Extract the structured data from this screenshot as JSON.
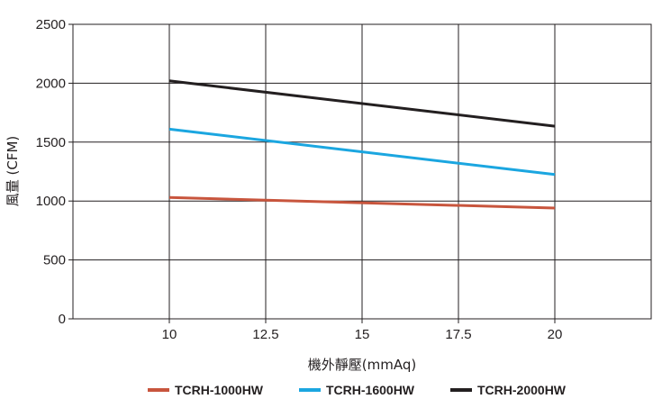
{
  "chart_data": {
    "type": "line",
    "title": "",
    "xlabel": "機外靜壓(mmAq)",
    "ylabel": "風量 (CFM)",
    "xlim": [
      7.5,
      22.5
    ],
    "ylim": [
      0,
      2500
    ],
    "x_ticks": [
      10,
      12.5,
      15,
      17.5,
      20
    ],
    "x_tick_labels": [
      "10",
      "12.5",
      "15",
      "17.5",
      "20"
    ],
    "y_ticks": [
      0,
      500,
      1000,
      1500,
      2000,
      2500
    ],
    "y_tick_labels": [
      "0",
      "500",
      "1000",
      "1500",
      "2000",
      "2500"
    ],
    "grid": true,
    "legend_position": "bottom",
    "series": [
      {
        "name": "TCRH-1000HW",
        "color": "#c8553d",
        "x": [
          10,
          20
        ],
        "y": [
          1030,
          940
        ]
      },
      {
        "name": "TCRH-1600HW",
        "color": "#1ba6e0",
        "x": [
          10,
          20
        ],
        "y": [
          1610,
          1225
        ]
      },
      {
        "name": "TCRH-2000HW",
        "color": "#231f20",
        "x": [
          10,
          20
        ],
        "y": [
          2020,
          1635
        ]
      }
    ]
  }
}
